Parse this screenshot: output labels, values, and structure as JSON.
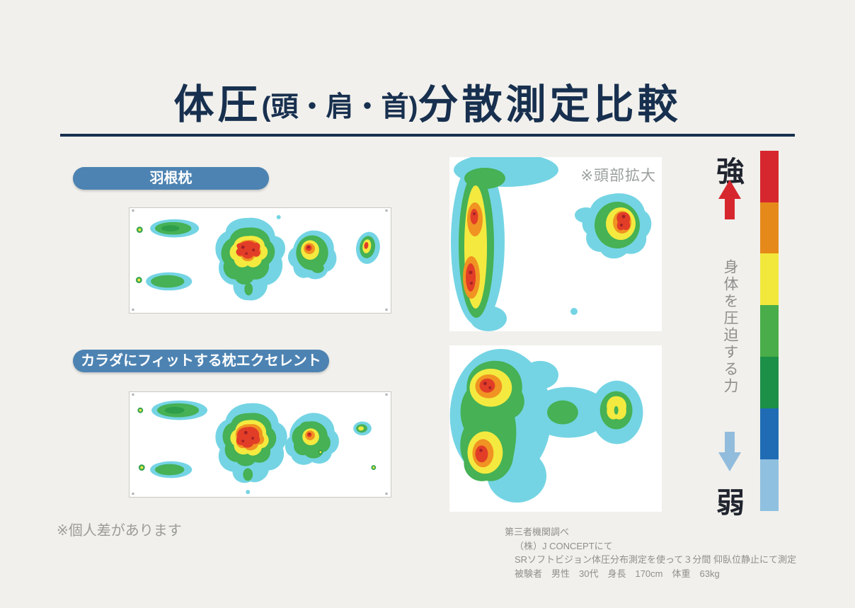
{
  "title": {
    "part1": "体圧",
    "part2": "(頭・肩・首)",
    "part3": "分散測定比較"
  },
  "panels": {
    "feather": {
      "badge": "羽根枕"
    },
    "excellent": {
      "badge": "カラダにフィットする枕エクセレント"
    }
  },
  "zoom_note": "※頭部拡大",
  "legend": {
    "strong": "強",
    "weak": "弱",
    "axis_label": "身体を圧迫する力",
    "colors": [
      "#d7272e",
      "#e58a1a",
      "#f2e83b",
      "#49ad49",
      "#1d9048",
      "#1f6cb5",
      "#8fc0e0"
    ],
    "arrow_up_color": "#d7272e",
    "arrow_down_color": "#92bcdc"
  },
  "footnotes": {
    "individual_note": "※個人差があります",
    "source": [
      "第三者機関調べ",
      "（株）J CONCEPTにて",
      "SRソフトビジョン体圧分布測定を使って３分間 仰臥位静止にて測定",
      "被験者　男性　30代　身長　170cm　体重　63kg"
    ]
  }
}
